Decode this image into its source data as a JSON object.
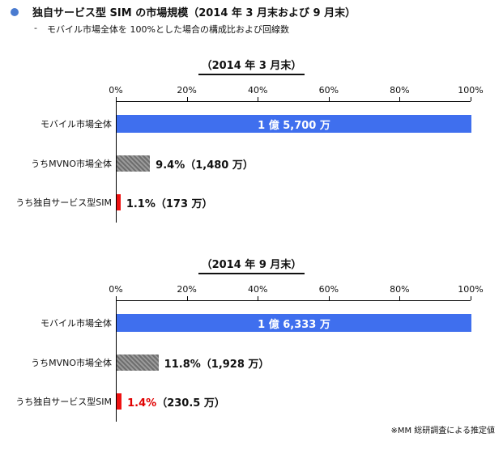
{
  "header": {
    "title": "独自サービス型 SIM の市場規模（2014 年 3 月末および 9 月末）",
    "dash": "-",
    "subtitle": "モバイル市場全体を 100%とした場合の構成比および回線数"
  },
  "colors": {
    "bullet": "#4a7bd0",
    "total_bar": "#3f6fee",
    "mvno_bar": "#808080",
    "sim_bar": "#ee1111",
    "highlight_text": "#e00000"
  },
  "chart_data": [
    {
      "type": "bar",
      "orientation": "horizontal",
      "title": "（2014 年 3 月末）",
      "xlim": [
        0,
        100
      ],
      "xticks": [
        "0%",
        "20%",
        "40%",
        "60%",
        "80%",
        "100%"
      ],
      "grid": false,
      "categories": [
        "モバイル市場全体",
        "うちMVNO市場全体",
        "うち独自サービス型SIM"
      ],
      "values": [
        100,
        9.4,
        1.1
      ],
      "labels": [
        {
          "text": "1 億 5,700 万",
          "inside": true,
          "pct": "",
          "rest": ""
        },
        {
          "text": "",
          "inside": false,
          "pct": "9.4%",
          "rest": "（1,480 万）",
          "pct_red": false
        },
        {
          "text": "",
          "inside": false,
          "pct": "1.1%",
          "rest": "（173 万）",
          "pct_red": false
        }
      ],
      "bar_colors": [
        "#3f6fee",
        "#808080",
        "#ee1111"
      ]
    },
    {
      "type": "bar",
      "orientation": "horizontal",
      "title": "（2014 年 9 月末）",
      "xlim": [
        0,
        100
      ],
      "xticks": [
        "0%",
        "20%",
        "40%",
        "60%",
        "80%",
        "100%"
      ],
      "grid": false,
      "categories": [
        "モバイル市場全体",
        "うちMVNO市場全体",
        "うち独自サービス型SIM"
      ],
      "values": [
        100,
        11.8,
        1.4
      ],
      "labels": [
        {
          "text": "1 億 6,333 万",
          "inside": true,
          "pct": "",
          "rest": ""
        },
        {
          "text": "",
          "inside": false,
          "pct": "11.8%",
          "rest": "（1,928 万）",
          "pct_red": false
        },
        {
          "text": "",
          "inside": false,
          "pct": "1.4%",
          "rest": "（230.5 万）",
          "pct_red": true
        }
      ],
      "bar_colors": [
        "#3f6fee",
        "#808080",
        "#ee1111"
      ]
    }
  ],
  "footnote": "※MM 総研調査による推定値"
}
